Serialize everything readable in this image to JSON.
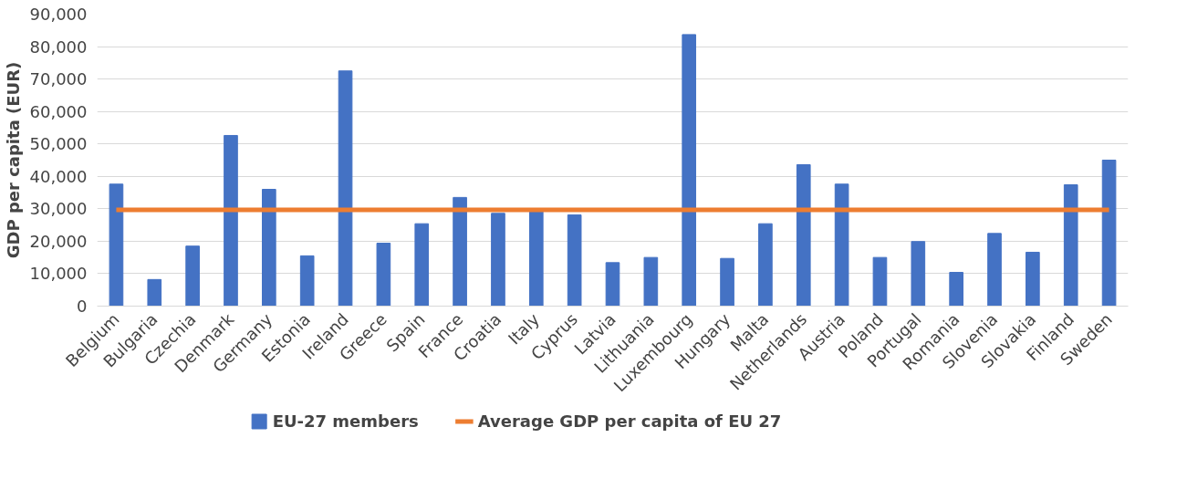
{
  "chart_data": {
    "type": "bar",
    "ylabel": "GDP per capita (EUR)",
    "categories": [
      "Belgium",
      "Bulgaria",
      "Czechia",
      "Denmark",
      "Germany",
      "Estonia",
      "Ireland",
      "Greece",
      "Spain",
      "France",
      "Croatia",
      "Italy",
      "Cyprus",
      "Latvia",
      "Lithuania",
      "Luxembourg",
      "Hungary",
      "Malta",
      "Netherlands",
      "Austria",
      "Poland",
      "Portugal",
      "Romania",
      "Slovenia",
      "Slovakia",
      "Finland",
      "Sweden"
    ],
    "series": [
      {
        "name": "EU-27 members",
        "color": "#4472c4",
        "values": [
          37600,
          8200,
          18500,
          52600,
          36000,
          15500,
          72500,
          19400,
          25400,
          33500,
          28600,
          29500,
          28100,
          13400,
          15000,
          83700,
          14700,
          25400,
          43600,
          37600,
          15000,
          19900,
          10400,
          22400,
          16600,
          37400,
          45000
        ]
      },
      {
        "name": "Average GDP per capita of EU 27",
        "type": "line",
        "color": "#ed7d31",
        "values": [
          29700,
          29700,
          29700,
          29700,
          29700,
          29700,
          29700,
          29700,
          29700,
          29700,
          29700,
          29700,
          29700,
          29700,
          29700,
          29700,
          29700,
          29700,
          29700,
          29700,
          29700,
          29700,
          29700,
          29700,
          29700,
          29700,
          29700
        ]
      }
    ],
    "ylim": [
      0,
      90000
    ],
    "yticks": [
      0,
      {
        "value": 10000,
        "label": "10,000"
      },
      {
        "value": 20000,
        "label": "20,000"
      },
      {
        "value": 30000,
        "label": "30,000"
      },
      {
        "value": 40000,
        "label": "40,000"
      },
      {
        "value": 50000,
        "label": "50,000"
      },
      {
        "value": 60000,
        "label": "60,000"
      },
      {
        "value": 70000,
        "label": "70,000"
      },
      {
        "value": 80000,
        "label": "80,000"
      },
      {
        "value": 90000,
        "label": "90,000"
      }
    ],
    "grid": "y",
    "legend": "bottom"
  }
}
